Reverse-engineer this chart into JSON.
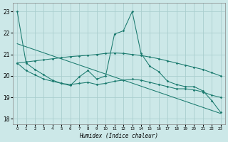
{
  "xlabel": "Humidex (Indice chaleur)",
  "x": [
    0,
    1,
    2,
    3,
    4,
    5,
    6,
    7,
    8,
    9,
    10,
    11,
    12,
    13,
    14,
    15,
    16,
    17,
    18,
    19,
    20,
    21,
    22,
    23
  ],
  "line_volatile": [
    23.0,
    20.6,
    20.3,
    20.05,
    19.8,
    19.65,
    19.55,
    19.95,
    20.25,
    19.85,
    20.0,
    21.95,
    22.1,
    23.0,
    21.05,
    20.45,
    20.2,
    19.75,
    19.6,
    19.5,
    19.5,
    19.3,
    18.85,
    18.3
  ],
  "line_smooth_up": [
    20.6,
    20.65,
    20.7,
    20.75,
    20.8,
    20.85,
    20.9,
    20.93,
    20.96,
    21.0,
    21.05,
    21.07,
    21.05,
    21.0,
    20.95,
    20.88,
    20.8,
    20.7,
    20.6,
    20.5,
    20.4,
    20.3,
    20.15,
    20.0
  ],
  "line_mid": [
    20.6,
    20.25,
    20.05,
    19.85,
    19.75,
    19.65,
    19.6,
    19.65,
    19.7,
    19.6,
    19.65,
    19.75,
    19.8,
    19.85,
    19.8,
    19.7,
    19.6,
    19.5,
    19.4,
    19.4,
    19.35,
    19.25,
    19.1,
    19.0
  ],
  "trend_x": [
    0,
    23
  ],
  "trend_y": [
    21.5,
    18.25
  ],
  "bg_color": "#cce8e8",
  "grid_color": "#aacece",
  "line_color": "#1a7a6e",
  "ylim": [
    17.75,
    23.4
  ],
  "xlim": [
    -0.5,
    23.5
  ],
  "yticks": [
    18,
    19,
    20,
    21,
    22,
    23
  ],
  "xticks": [
    0,
    1,
    2,
    3,
    4,
    5,
    6,
    7,
    8,
    9,
    10,
    11,
    12,
    13,
    14,
    15,
    16,
    17,
    18,
    19,
    20,
    21,
    22,
    23
  ]
}
